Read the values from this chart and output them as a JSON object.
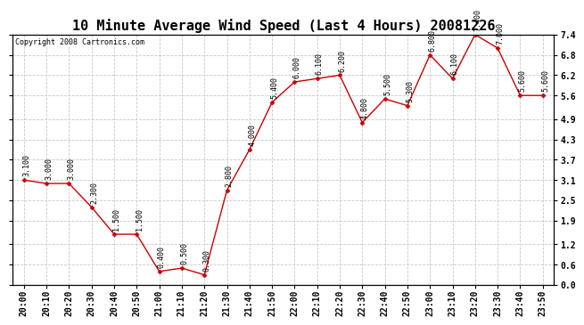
{
  "title": "10 Minute Average Wind Speed (Last 4 Hours) 20081226",
  "copyright": "Copyright 2008 Cartronics.com",
  "x_labels": [
    "20:00",
    "20:10",
    "20:20",
    "20:30",
    "20:40",
    "20:50",
    "21:00",
    "21:10",
    "21:20",
    "21:30",
    "21:40",
    "21:50",
    "22:00",
    "22:10",
    "22:20",
    "22:30",
    "22:40",
    "22:50",
    "23:00",
    "23:10",
    "23:20",
    "23:30",
    "23:40",
    "23:50"
  ],
  "y_values": [
    3.1,
    3.0,
    3.0,
    2.3,
    1.5,
    1.5,
    0.4,
    0.5,
    0.3,
    2.8,
    4.0,
    5.4,
    6.0,
    6.1,
    6.2,
    4.8,
    5.5,
    5.3,
    6.8,
    6.1,
    7.4,
    7.0,
    5.6,
    5.6
  ],
  "line_color": "#cc0000",
  "marker_color": "#cc0000",
  "bg_color": "#ffffff",
  "grid_color": "#c8c8c8",
  "ylim": [
    0.0,
    7.4
  ],
  "yticks": [
    0.0,
    0.6,
    1.2,
    1.9,
    2.5,
    3.1,
    3.7,
    4.3,
    4.9,
    5.6,
    6.2,
    6.8,
    7.4
  ],
  "title_fontsize": 11,
  "tick_fontsize": 7,
  "point_label_fontsize": 6,
  "copyright_fontsize": 6
}
